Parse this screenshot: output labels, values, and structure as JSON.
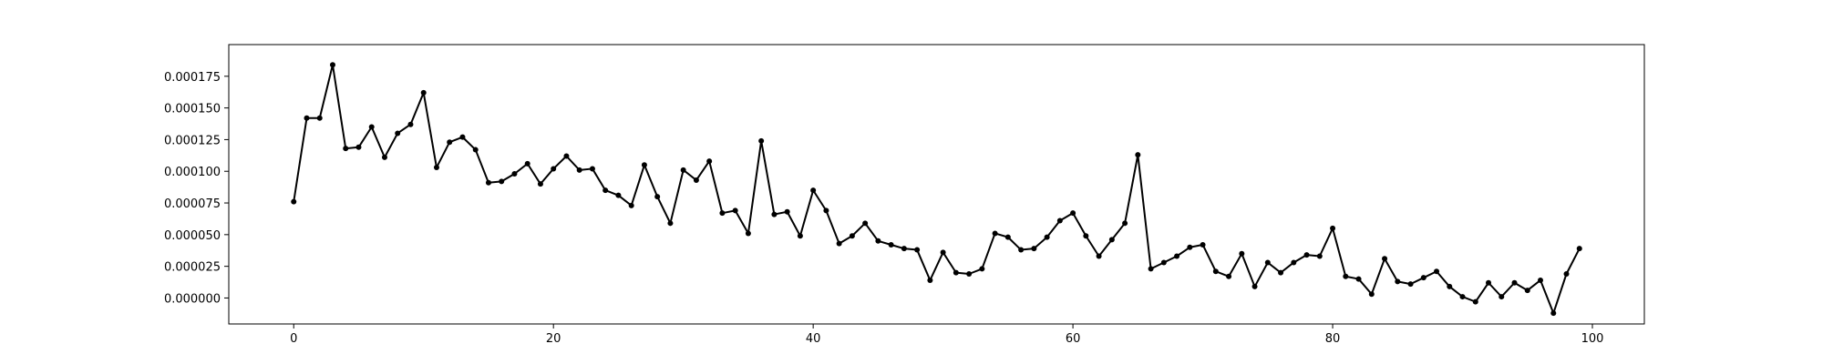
{
  "chart_data": {
    "type": "line",
    "title": "",
    "xlabel": "",
    "ylabel": "",
    "xlim": [
      -5,
      104
    ],
    "ylim": [
      -2.05e-05,
      0.0002
    ],
    "xticks": [
      0,
      20,
      40,
      60,
      80,
      100
    ],
    "xtick_labels": [
      "0",
      "20",
      "40",
      "60",
      "80",
      "100"
    ],
    "yticks": [
      0,
      2.5e-05,
      5e-05,
      7.5e-05,
      0.0001,
      0.000125,
      0.00015,
      0.000175
    ],
    "ytick_labels": [
      "0.000000",
      "0.000025",
      "0.000050",
      "0.000075",
      "0.000100",
      "0.000125",
      "0.000150",
      "0.000175"
    ],
    "grid": false,
    "line_color": "#000000",
    "marker": "circle",
    "series": [
      {
        "x": [
          0,
          1,
          2,
          3,
          4,
          5,
          6,
          7,
          8,
          9,
          10,
          11,
          12,
          13,
          14,
          15,
          16,
          17,
          18,
          19,
          20,
          21,
          22,
          23,
          24,
          25,
          26,
          27,
          28,
          29,
          30,
          31,
          32,
          33,
          34,
          35,
          36,
          37,
          38,
          39,
          40,
          41,
          42,
          43,
          44,
          45,
          46,
          47,
          48,
          49,
          50,
          51,
          52,
          53,
          54,
          55,
          56,
          57,
          58,
          59,
          60,
          61,
          62,
          63,
          64,
          65,
          66,
          67,
          68,
          69,
          70,
          71,
          72,
          73,
          74,
          75,
          76,
          77,
          78,
          79,
          80,
          81,
          82,
          83,
          84,
          85,
          86,
          87,
          88,
          89,
          90,
          91,
          92,
          93,
          94,
          95,
          96,
          97,
          98,
          99
        ],
        "values": [
          7.6e-05,
          0.000142,
          0.000142,
          0.000184,
          0.000118,
          0.000119,
          0.000135,
          0.000111,
          0.00013,
          0.000137,
          0.000162,
          0.000103,
          0.000123,
          0.000127,
          0.000117,
          9.1e-05,
          9.2e-05,
          9.8e-05,
          0.000106,
          9e-05,
          0.000102,
          0.000112,
          0.000101,
          0.000102,
          8.5e-05,
          8.1e-05,
          7.3e-05,
          0.000105,
          8e-05,
          5.9e-05,
          0.000101,
          9.3e-05,
          0.000108,
          6.7e-05,
          6.9e-05,
          5.1e-05,
          0.000124,
          6.6e-05,
          6.8e-05,
          4.9e-05,
          8.5e-05,
          6.9e-05,
          4.3e-05,
          4.9e-05,
          5.9e-05,
          4.5e-05,
          4.2e-05,
          3.9e-05,
          3.8e-05,
          1.4e-05,
          3.6e-05,
          2e-05,
          1.9e-05,
          2.3e-05,
          5.1e-05,
          4.8e-05,
          3.8e-05,
          3.9e-05,
          4.8e-05,
          6.1e-05,
          6.7e-05,
          4.9e-05,
          3.3e-05,
          4.6e-05,
          5.9e-05,
          0.000113,
          2.3e-05,
          2.8e-05,
          3.3e-05,
          4e-05,
          4.2e-05,
          2.1e-05,
          1.7e-05,
          3.5e-05,
          9e-06,
          2.8e-05,
          2e-05,
          2.8e-05,
          3.4e-05,
          3.3e-05,
          5.5e-05,
          1.7e-05,
          1.5e-05,
          3e-06,
          3.1e-05,
          1.3e-05,
          1.1e-05,
          1.6e-05,
          2.1e-05,
          9e-06,
          1e-06,
          -3e-06,
          1.2e-05,
          1e-06,
          1.2e-05,
          6e-06,
          1.4e-05,
          -1.2e-05,
          1.9e-05,
          3.9e-05
        ]
      }
    ]
  }
}
